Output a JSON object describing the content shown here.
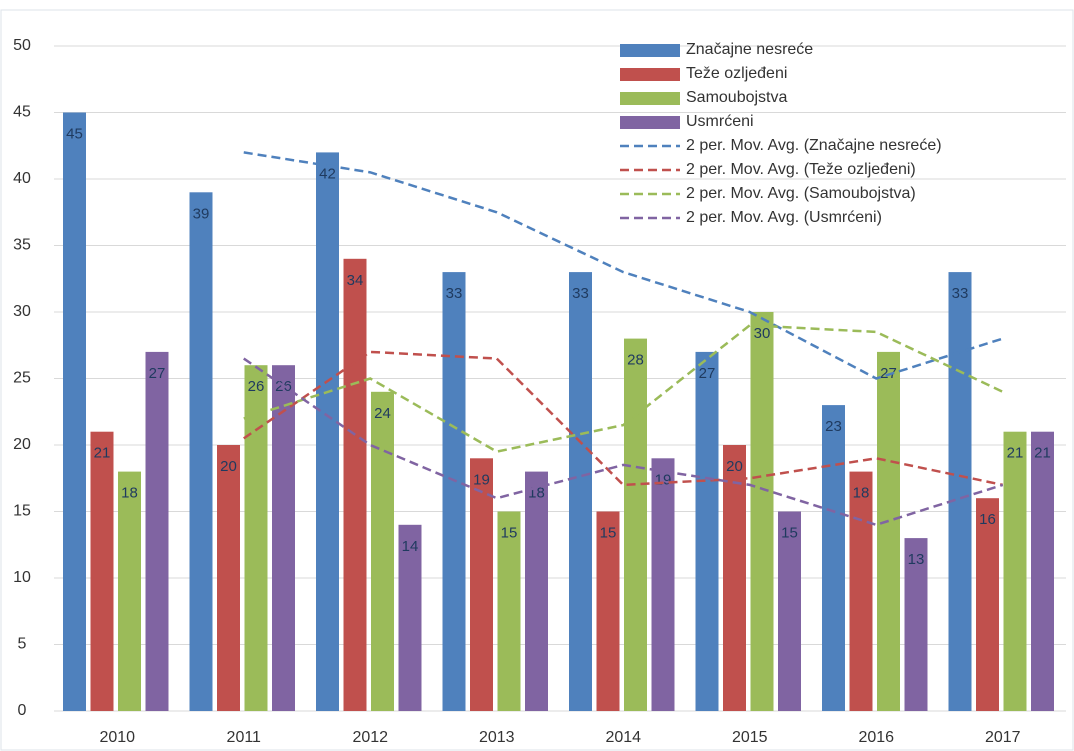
{
  "chart_data": {
    "type": "bar",
    "categories": [
      "2010",
      "2011",
      "2012",
      "2013",
      "2014",
      "2015",
      "2016",
      "2017"
    ],
    "series": [
      {
        "name": "Značajne nesreće",
        "color": "#4f81bd",
        "values": [
          45,
          39,
          42,
          33,
          33,
          27,
          23,
          33
        ]
      },
      {
        "name": "Teže ozljeđeni",
        "color": "#c0504d",
        "values": [
          21,
          20,
          34,
          19,
          15,
          20,
          18,
          16
        ]
      },
      {
        "name": "Samoubojstva",
        "color": "#9bbb59",
        "values": [
          18,
          26,
          24,
          15,
          28,
          30,
          27,
          21
        ]
      },
      {
        "name": "Usmrćeni",
        "color": "#8064a2",
        "values": [
          27,
          26,
          14,
          18,
          19,
          15,
          13,
          21
        ]
      }
    ],
    "trendlines": [
      {
        "name": "2 per. Mov. Avg. (Značajne nesreće)",
        "color": "#4f81bd",
        "values": [
          null,
          42,
          40.5,
          37.5,
          33,
          30,
          25,
          28
        ]
      },
      {
        "name": "2 per. Mov. Avg. (Teže ozljeđeni)",
        "color": "#c0504d",
        "values": [
          null,
          20.5,
          27,
          26.5,
          17,
          17.5,
          19,
          17
        ]
      },
      {
        "name": "2 per. Mov. Avg. (Samoubojstva)",
        "color": "#9bbb59",
        "values": [
          null,
          22,
          25,
          19.5,
          21.5,
          29,
          28.5,
          24
        ]
      },
      {
        "name": "2 per. Mov. Avg. (Usmrćeni)",
        "color": "#8064a2",
        "values": [
          null,
          26.5,
          20,
          16,
          18.5,
          17,
          14,
          17
        ]
      }
    ],
    "ylim": [
      0,
      50
    ],
    "yticks": [
      0,
      5,
      10,
      15,
      20,
      25,
      30,
      35,
      40,
      45,
      50
    ],
    "grid": true,
    "legend": "top-right"
  }
}
